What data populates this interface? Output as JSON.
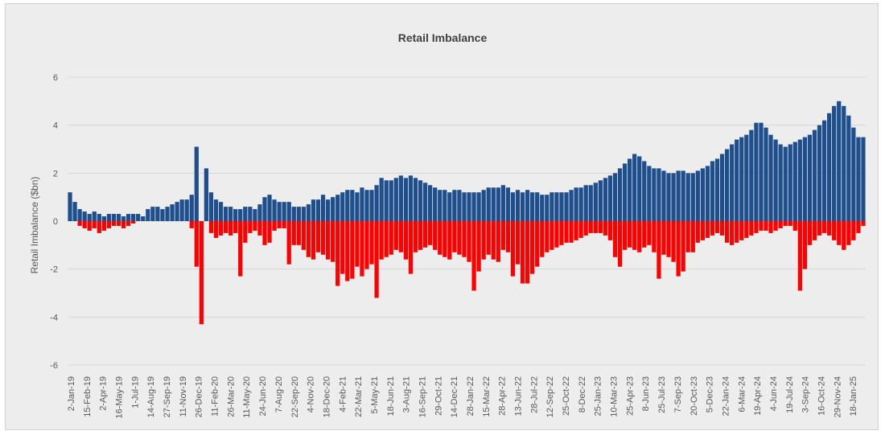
{
  "chart_data": {
    "type": "bar",
    "title": "Retail Imbalance",
    "xlabel": "",
    "ylabel": "Retail Imbalance ($bn)",
    "ylim": [
      -6,
      6
    ],
    "yticks": [
      6,
      4,
      2,
      0,
      -2,
      -4,
      -6
    ],
    "grid": true,
    "legend": "none",
    "colors": {
      "positive": "#1f4e8c",
      "negative": "#ff0000"
    },
    "x_tick_labels": [
      "2-Jan-19",
      "15-Feb-19",
      "2-Apr-19",
      "16-May-19",
      "1-Jul-19",
      "14-Aug-19",
      "27-Sep-19",
      "11-Nov-19",
      "26-Dec-19",
      "11-Feb-20",
      "26-Mar-20",
      "11-May-20",
      "24-Jun-20",
      "7-Aug-20",
      "22-Sep-20",
      "4-Nov-20",
      "18-Dec-20",
      "4-Feb-21",
      "22-Mar-21",
      "5-May-21",
      "18-Jun-21",
      "3-Aug-21",
      "16-Sep-21",
      "29-Oct-21",
      "14-Dec-21",
      "28-Jan-22",
      "15-Mar-22",
      "28-Apr-22",
      "13-Jun-22",
      "28-Jul-22",
      "12-Sep-22",
      "25-Oct-22",
      "8-Dec-22",
      "25-Jan-23",
      "10-Mar-23",
      "25-Apr-23",
      "8-Jun-23",
      "25-Jul-23",
      "7-Sep-23",
      "20-Oct-23",
      "5-Dec-23",
      "22-Jan-24",
      "6-Mar-24",
      "19-Apr-24",
      "4-Jun-24",
      "19-Jul-24",
      "3-Sep-24",
      "16-Oct-24",
      "29-Nov-24",
      "18-Jan-25"
    ],
    "series": [
      {
        "values": [
          1.2,
          0.8,
          0.5,
          0.4,
          0.3,
          0.4,
          0.3,
          0.2,
          0.3,
          0.3,
          0.3,
          0.2,
          0.3,
          0.3,
          0.3,
          0.2,
          0.5,
          0.6,
          0.6,
          0.5,
          0.6,
          0.7,
          0.8,
          0.9,
          0.9,
          1.1,
          3.1,
          -4.3,
          2.2,
          1.2,
          0.9,
          0.8,
          0.6,
          0.6,
          0.5,
          0.5,
          0.6,
          0.6,
          0.5,
          0.7,
          1.0,
          1.1,
          0.9,
          0.8,
          0.8,
          0.8,
          0.6,
          0.6,
          0.6,
          0.7,
          0.9,
          0.9,
          1.1,
          0.9,
          1.0,
          1.1,
          1.2,
          1.3,
          1.3,
          1.2,
          1.4,
          1.3,
          1.3,
          1.5,
          1.8,
          1.7,
          1.7,
          1.8,
          1.9,
          1.8,
          1.9,
          1.8,
          1.7,
          1.6,
          1.5,
          1.4,
          1.3,
          1.3,
          1.2,
          1.3,
          1.3,
          1.2,
          1.2,
          1.2,
          1.2,
          1.3,
          1.4,
          1.4,
          1.4,
          1.5,
          1.4,
          1.2,
          1.3,
          1.2,
          1.3,
          1.2,
          1.2,
          1.1,
          1.1,
          1.2,
          1.2,
          1.2,
          1.2,
          1.3,
          1.4,
          1.4,
          1.5,
          1.5,
          1.6,
          1.7,
          1.8,
          1.9,
          2.0,
          2.2,
          2.4,
          2.6,
          2.8,
          2.7,
          2.5,
          2.3,
          2.2,
          2.2,
          2.1,
          2.0,
          2.0,
          2.1,
          2.1,
          2.0,
          2.0,
          2.1,
          2.2,
          2.3,
          2.5,
          2.6,
          2.8,
          3.0,
          3.2,
          3.4,
          3.5,
          3.6,
          3.8,
          4.1,
          4.1,
          3.9,
          3.6,
          3.4,
          3.2,
          3.1,
          3.2,
          3.3,
          3.4,
          3.5,
          3.6,
          3.8,
          4.0,
          4.2,
          4.5,
          4.8,
          5.0,
          4.8,
          4.4,
          3.9,
          3.5,
          3.5
        ]
      },
      {
        "values": [
          0,
          0,
          -0.2,
          -0.3,
          -0.4,
          -0.3,
          -0.5,
          -0.4,
          -0.3,
          -0.2,
          -0.2,
          -0.3,
          -0.2,
          -0.1,
          0,
          0,
          0,
          0,
          0,
          0,
          0,
          0,
          0,
          0,
          0,
          -0.3,
          -1.9,
          0,
          0,
          -0.5,
          -0.7,
          -0.6,
          -0.5,
          -0.6,
          -0.5,
          -2.3,
          -0.9,
          -0.5,
          -0.4,
          -0.6,
          -1.0,
          -0.9,
          -0.4,
          -0.3,
          -0.3,
          -1.8,
          -1.0,
          -1.0,
          -1.2,
          -1.5,
          -1.6,
          -1.3,
          -1.4,
          -1.6,
          -1.7,
          -2.7,
          -2.2,
          -2.5,
          -2.4,
          -1.9,
          -2.3,
          -2.0,
          -1.8,
          -3.2,
          -1.6,
          -1.5,
          -1.4,
          -1.2,
          -1.3,
          -1.6,
          -2.2,
          -1.3,
          -1.2,
          -1.1,
          -1.0,
          -1.2,
          -1.4,
          -1.5,
          -1.6,
          -1.3,
          -1.4,
          -1.5,
          -1.7,
          -2.9,
          -2.1,
          -1.6,
          -1.4,
          -1.6,
          -1.7,
          -1.2,
          -1.3,
          -2.3,
          -1.8,
          -2.6,
          -2.6,
          -2.2,
          -1.9,
          -1.5,
          -1.3,
          -1.2,
          -1.1,
          -1.0,
          -0.9,
          -0.9,
          -0.8,
          -0.7,
          -0.6,
          -0.5,
          -0.5,
          -0.5,
          -0.6,
          -0.8,
          -1.5,
          -1.9,
          -1.2,
          -1.1,
          -1.2,
          -1.3,
          -1.1,
          -1.0,
          -1.3,
          -2.4,
          -1.4,
          -1.5,
          -1.7,
          -2.3,
          -2.1,
          -1.3,
          -1.3,
          -0.9,
          -0.8,
          -0.7,
          -0.6,
          -0.5,
          -0.6,
          -0.9,
          -1.0,
          -0.9,
          -0.8,
          -0.7,
          -0.6,
          -0.5,
          -0.4,
          -0.4,
          -0.5,
          -0.4,
          -0.3,
          -0.2,
          -0.2,
          -0.4,
          -2.9,
          -2.0,
          -1.0,
          -0.8,
          -0.6,
          -0.5,
          -0.6,
          -0.8,
          -1.0,
          -1.2,
          -1.0,
          -0.8,
          -0.5,
          -0.2,
          0
        ]
      }
    ]
  }
}
